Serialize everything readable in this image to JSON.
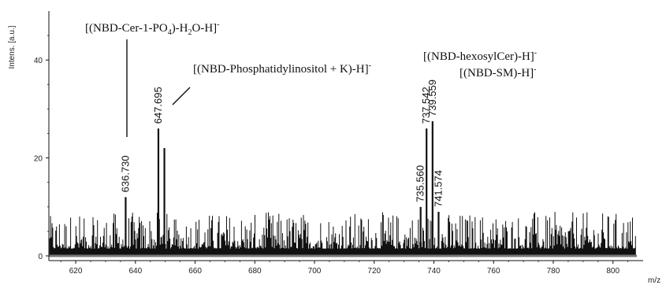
{
  "chart_data": {
    "type": "line",
    "ylabel": "Intens. [a.u.]",
    "xlabel": "m/z",
    "xlim": [
      611,
      808
    ],
    "ylim": [
      0,
      50
    ],
    "x_ticks": [
      620,
      640,
      660,
      680,
      700,
      720,
      740,
      760,
      780,
      800
    ],
    "y_ticks": [
      0,
      20,
      40
    ],
    "peaks": [
      {
        "mz": 636.73,
        "intensity": 12,
        "label": "636.730"
      },
      {
        "mz": 647.695,
        "intensity": 26,
        "label": "647.695"
      },
      {
        "mz": 649.7,
        "intensity": 22
      },
      {
        "mz": 735.56,
        "intensity": 10,
        "label": "735.560"
      },
      {
        "mz": 737.542,
        "intensity": 26,
        "label": "737.542"
      },
      {
        "mz": 739.559,
        "intensity": 27.5,
        "label": "739.559"
      },
      {
        "mz": 741.574,
        "intensity": 9,
        "label": "741.574"
      }
    ],
    "noise": {
      "baseline": 1.5,
      "max": 9
    },
    "annotations": [
      {
        "id": "cer1p",
        "mz": 636.73,
        "pre": "[(NBD-Cer-1-PO",
        "sub1": "4",
        "mid": ")-H",
        "sub2": "2",
        "post": "O-H]",
        "sup": "-"
      },
      {
        "id": "pi",
        "mz": 647.695,
        "pre": "[(NBD-Phosphatidylinositol + K)-H]",
        "sup": "-"
      },
      {
        "id": "hexcer",
        "pre": "[(NBD-hexosylCer)-H]",
        "sup": "-"
      },
      {
        "id": "sm",
        "pre": "[(NBD-SM)-H]",
        "sup": "-"
      }
    ]
  }
}
